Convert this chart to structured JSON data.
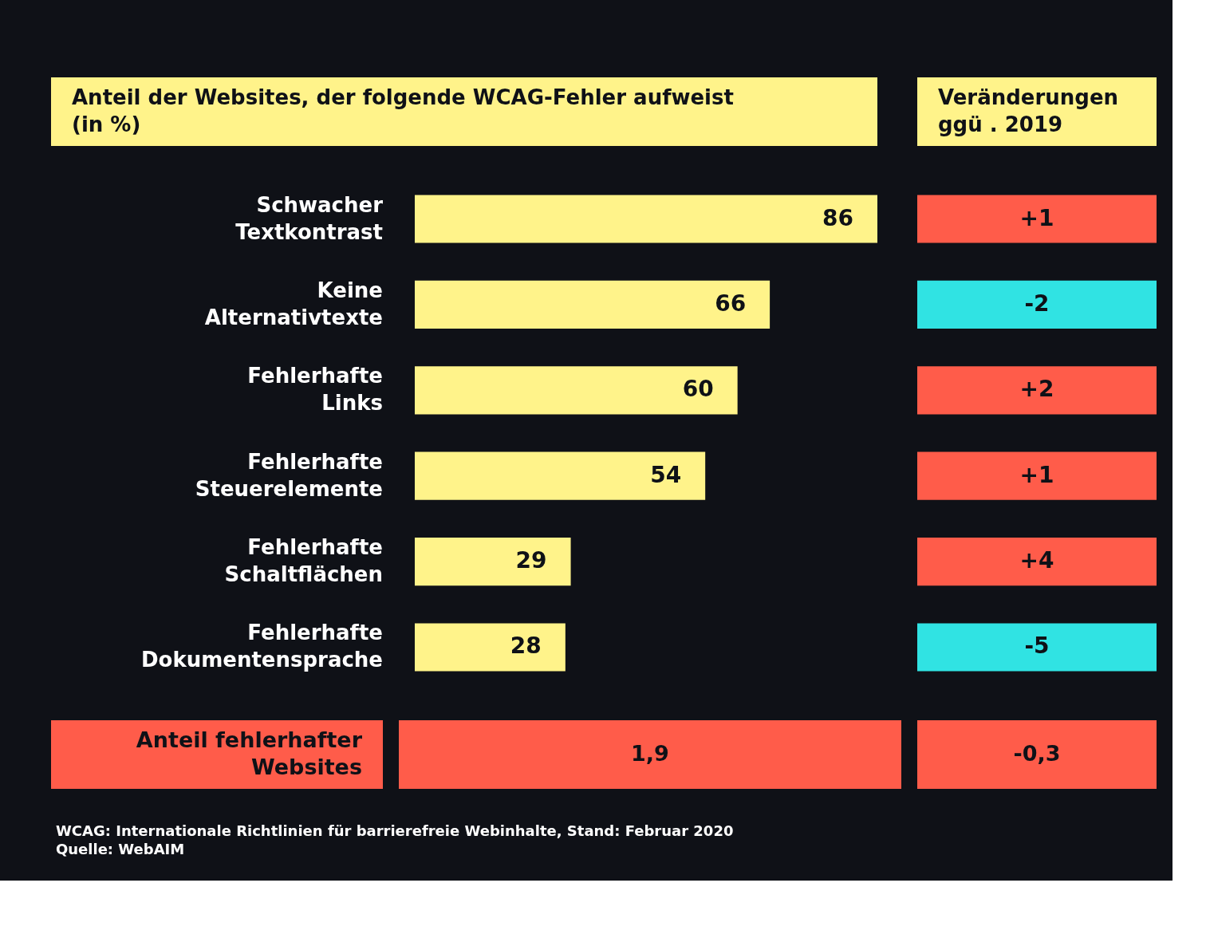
{
  "chart_data": [
    {
      "type": "bar",
      "orientation": "horizontal",
      "title": "Anteil der Websites, der folgende WCAG-Fehler aufweist (in %)",
      "categories": [
        "Schwacher Textkontrast",
        "Keine Alternativtexte",
        "Fehlerhafte Links",
        "Fehlerhafte Steuerelemente",
        "Fehlerhafte Schaltflächen",
        "Fehlerhafte Dokumentensprache"
      ],
      "values": [
        86,
        66,
        60,
        54,
        29,
        28
      ],
      "color": "#fff38a",
      "data_labels": true
    },
    {
      "type": "other",
      "title": "Veränderungen ggü . 2019",
      "values": [
        1,
        -2,
        2,
        1,
        4,
        -5
      ],
      "value_labels": [
        "+1",
        "-2",
        "+2",
        "+1",
        "+4",
        "-5"
      ],
      "colors": [
        "#ff5c4a",
        "#30e3e3",
        "#ff5c4a",
        "#ff5c4a",
        "#ff5c4a",
        "#30e3e3"
      ]
    },
    {
      "type": "other",
      "title": "Anteil fehlerhafter Websites",
      "values": [
        1.9,
        -0.3
      ],
      "value_labels": [
        "1,9",
        "-0,3"
      ],
      "color": "#ff5c4a",
      "annotations": [
        "WCAG: Internationale Richtlinien für barrierefreie Webinhalte, Stand: Februar 2020",
        "Quelle: WebAIM"
      ]
    }
  ]
}
